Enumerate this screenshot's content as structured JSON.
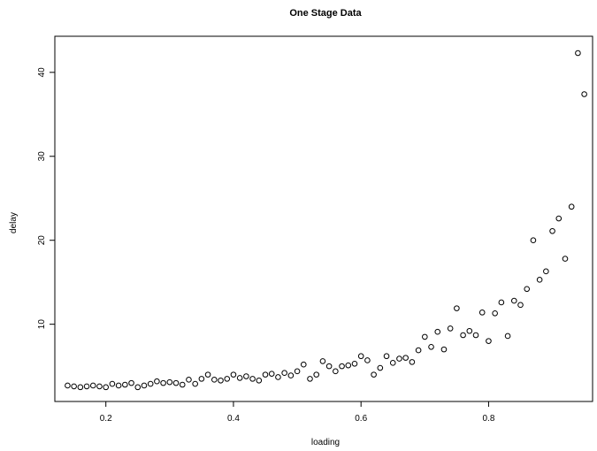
{
  "chart_data": {
    "type": "scatter",
    "title": "One Stage Data",
    "xlabel": "loading",
    "ylabel": "delay",
    "xlim": [
      0.12,
      0.963
    ],
    "ylim": [
      0.8,
      44.3
    ],
    "xticks": [
      0.2,
      0.4,
      0.6,
      0.8
    ],
    "yticks": [
      10,
      20,
      30,
      40
    ],
    "grid": false,
    "marker": "open-circle",
    "colors": {
      "point": "#000000",
      "axis": "#000000",
      "background": "#ffffff"
    },
    "x": [
      0.14,
      0.15,
      0.16,
      0.17,
      0.18,
      0.19,
      0.2,
      0.21,
      0.22,
      0.23,
      0.24,
      0.25,
      0.26,
      0.27,
      0.28,
      0.29,
      0.3,
      0.31,
      0.32,
      0.33,
      0.34,
      0.35,
      0.36,
      0.37,
      0.38,
      0.39,
      0.4,
      0.41,
      0.42,
      0.43,
      0.44,
      0.45,
      0.46,
      0.47,
      0.48,
      0.49,
      0.5,
      0.51,
      0.52,
      0.53,
      0.54,
      0.55,
      0.56,
      0.57,
      0.58,
      0.59,
      0.6,
      0.61,
      0.62,
      0.63,
      0.64,
      0.65,
      0.66,
      0.67,
      0.68,
      0.69,
      0.7,
      0.71,
      0.72,
      0.73,
      0.74,
      0.75,
      0.76,
      0.77,
      0.78,
      0.79,
      0.8,
      0.81,
      0.82,
      0.83,
      0.84,
      0.85,
      0.86,
      0.87,
      0.88,
      0.89,
      0.9,
      0.91,
      0.92,
      0.93,
      0.94,
      0.95
    ],
    "y": [
      2.7,
      2.6,
      2.5,
      2.6,
      2.7,
      2.6,
      2.5,
      2.9,
      2.7,
      2.8,
      3.0,
      2.5,
      2.7,
      2.9,
      3.2,
      3.0,
      3.1,
      3.0,
      2.8,
      3.4,
      2.9,
      3.5,
      4.0,
      3.4,
      3.3,
      3.5,
      4.0,
      3.6,
      3.8,
      3.5,
      3.3,
      4.0,
      4.1,
      3.7,
      4.2,
      3.9,
      4.4,
      5.2,
      3.5,
      4.0,
      5.6,
      5.0,
      4.4,
      5.0,
      5.1,
      5.3,
      6.2,
      5.7,
      4.0,
      4.8,
      6.2,
      5.4,
      5.9,
      6.0,
      5.5,
      6.9,
      8.5,
      7.3,
      9.1,
      7.0,
      9.5,
      11.9,
      8.7,
      9.2,
      8.7,
      11.4,
      8.0,
      11.3,
      12.6,
      8.6,
      12.8,
      12.3,
      14.2,
      20.0,
      15.3,
      16.3,
      21.1,
      22.6,
      17.8,
      24.0,
      42.3,
      37.4
    ]
  }
}
